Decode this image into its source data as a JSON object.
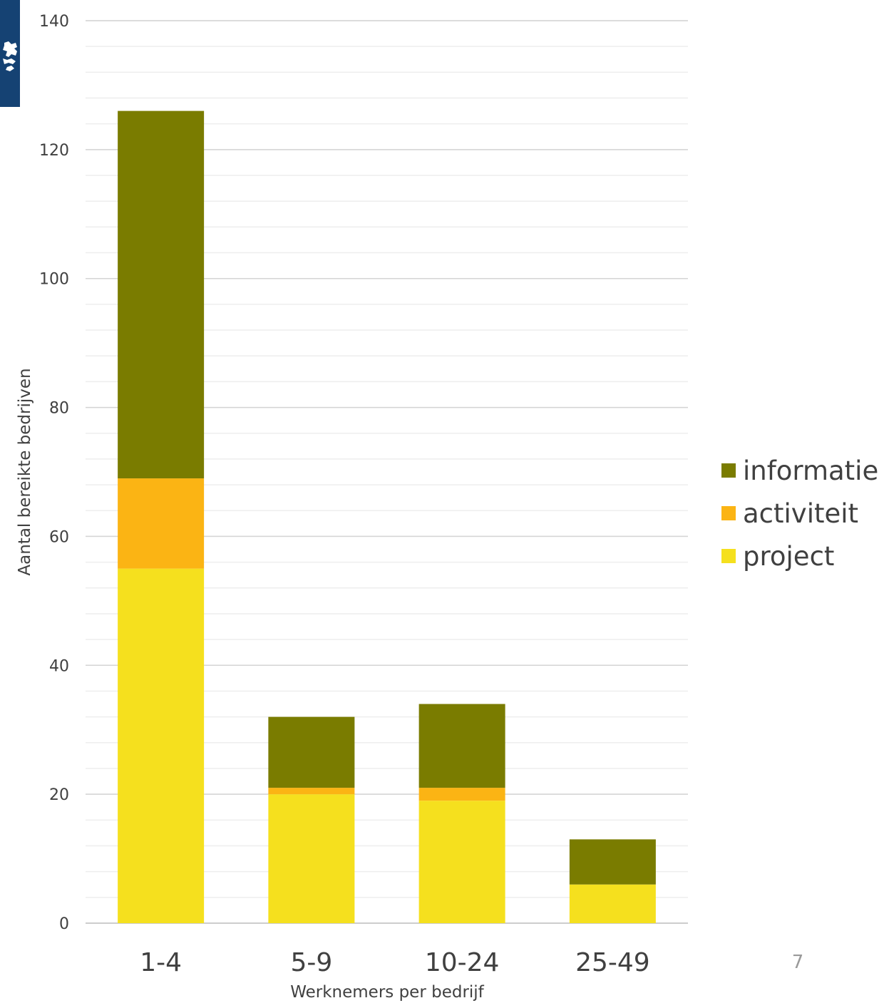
{
  "page": {
    "slide_number": "7",
    "logo_icon": "rijksoverheid-lion-logo",
    "logo_color": "#154273"
  },
  "chart_data": {
    "type": "bar",
    "stacked": true,
    "categories": [
      "1-4",
      "5-9",
      "10-24",
      "25-49"
    ],
    "series": [
      {
        "name": "project",
        "color": "#f5e01e",
        "values": [
          55,
          20,
          19,
          6
        ]
      },
      {
        "name": "activiteit",
        "color": "#fbb414",
        "values": [
          14,
          1,
          2,
          0
        ]
      },
      {
        "name": "informatie",
        "color": "#7a7c00",
        "values": [
          57,
          11,
          13,
          7
        ]
      }
    ],
    "legend_order": [
      "informatie",
      "activiteit",
      "project"
    ],
    "xlabel": "Werknemers  per bedrijf",
    "ylabel": "Aantal bereikte bedrijven",
    "ylim": [
      0,
      140
    ],
    "yticks": [
      0,
      20,
      40,
      60,
      80,
      100,
      120,
      140
    ],
    "minor_gridlines": true,
    "legend_position": "right"
  }
}
